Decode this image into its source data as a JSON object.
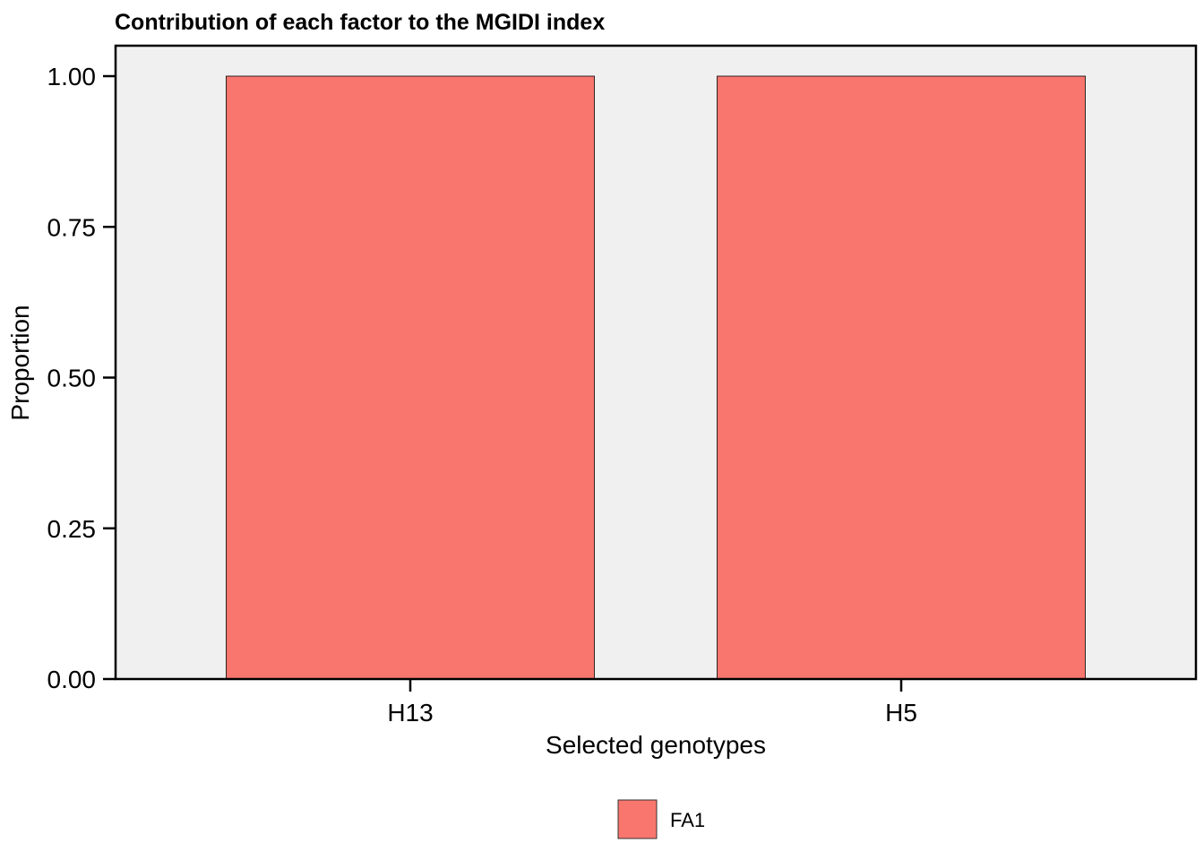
{
  "chart_data": {
    "type": "bar",
    "title": "Contribution of each factor to the MGIDI index",
    "xlabel": "Selected genotypes",
    "ylabel": "Proportion",
    "categories": [
      "H13",
      "H5"
    ],
    "series": [
      {
        "name": "FA1",
        "values": [
          1.0,
          1.0
        ],
        "color": "#F8766D"
      }
    ],
    "ylim": [
      0,
      1
    ],
    "yticks": [
      "0.00",
      "0.25",
      "0.50",
      "0.75",
      "1.00"
    ],
    "ytick_values": [
      0,
      0.25,
      0.5,
      0.75,
      1.0
    ],
    "grid": false,
    "panel_background": "#F0F0F0",
    "legend_position": "bottom"
  }
}
